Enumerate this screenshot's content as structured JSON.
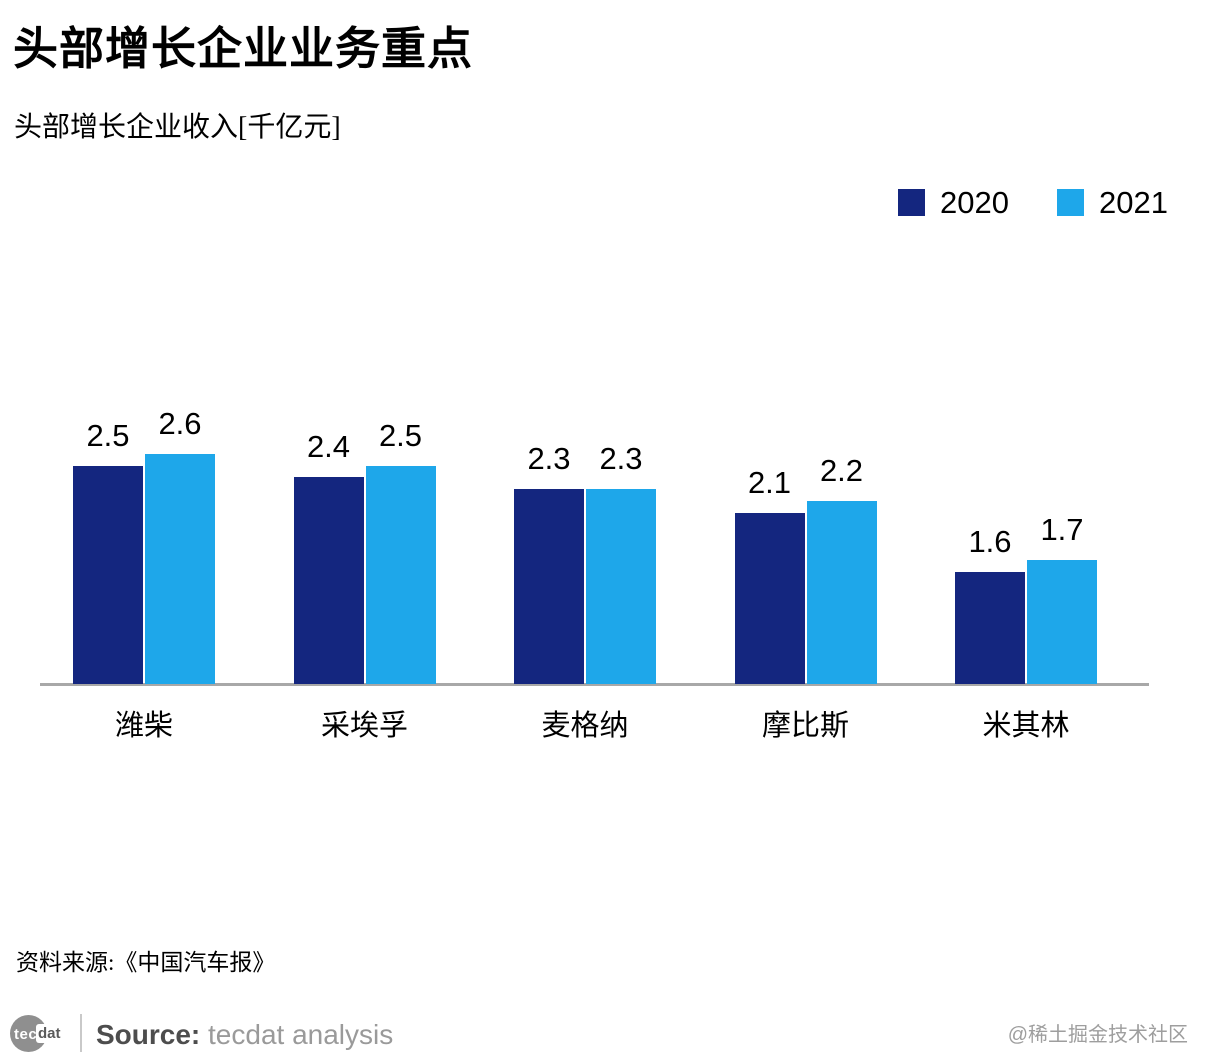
{
  "title": "头部增长企业业务重点",
  "subtitle": "头部增长企业收入[千亿元]",
  "legend": [
    {
      "label": "2020",
      "color": "#14267f"
    },
    {
      "label": "2021",
      "color": "#1ea7ea"
    }
  ],
  "chart_data": {
    "type": "bar",
    "title": "头部增长企业业务重点",
    "subtitle": "头部增长企业收入[千亿元]",
    "ylabel": "头部增长企业收入[千亿元]",
    "xlabel": "",
    "categories": [
      "潍柴",
      "采埃孚",
      "麦格纳",
      "摩比斯",
      "米其林"
    ],
    "series": [
      {
        "name": "2020",
        "color": "#14267f",
        "values": [
          2.5,
          2.4,
          2.3,
          2.1,
          1.6
        ]
      },
      {
        "name": "2021",
        "color": "#1ea7ea",
        "values": [
          2.6,
          2.5,
          2.3,
          2.2,
          1.7
        ]
      }
    ],
    "value_labels_shown": true,
    "legend_position": "top-right",
    "grid": false,
    "y_axis_ticks_shown": false,
    "baseline_color": "#a8a8a8"
  },
  "source_note": "资料来源:《中国汽车报》",
  "footer": {
    "logo_tec": "tec",
    "logo_dat": "dat",
    "source_label": "Source:",
    "source_text": "tecdat analysis",
    "watermark": "@稀土掘金技术社区"
  }
}
